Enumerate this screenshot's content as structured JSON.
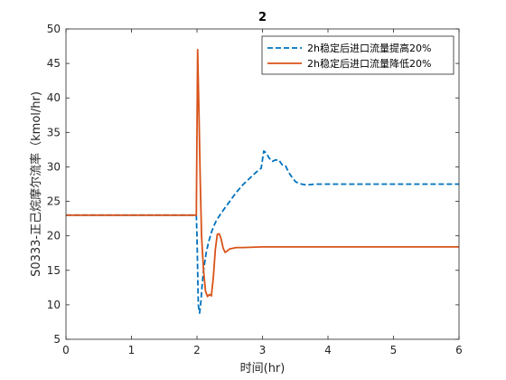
{
  "chart_data": {
    "type": "line",
    "title": "2",
    "xlabel": "时间(hr)",
    "ylabel": "S0333-正己烷摩尔流率（kmol/hr)",
    "xlim": [
      0,
      6
    ],
    "ylim": [
      5,
      50
    ],
    "xticks": [
      "0",
      "1",
      "2",
      "3",
      "4",
      "5",
      "6"
    ],
    "yticks": [
      "5",
      "10",
      "15",
      "20",
      "25",
      "30",
      "35",
      "40",
      "45",
      "50"
    ],
    "grid": false,
    "legend_position": "top-right",
    "series": [
      {
        "name": "2h稳定后进口流量提高20%",
        "color": "#0072BD",
        "style": "dashed",
        "x": [
          0,
          1.99,
          2.0,
          2.02,
          2.04,
          2.06,
          2.08,
          2.1,
          2.14,
          2.18,
          2.22,
          2.26,
          2.3,
          2.35,
          2.4,
          2.5,
          2.6,
          2.7,
          2.8,
          2.9,
          2.98,
          3.02,
          3.06,
          3.1,
          3.15,
          3.2,
          3.25,
          3.3,
          3.35,
          3.4,
          3.45,
          3.5,
          3.55,
          3.6,
          3.65,
          3.7,
          3.8,
          4.0,
          5.0,
          6.0
        ],
        "y": [
          23,
          23,
          20,
          10,
          8.8,
          10.5,
          13,
          15,
          17.5,
          19.2,
          20.5,
          21.5,
          22.3,
          23,
          23.7,
          25,
          26.3,
          27.4,
          28.3,
          29.2,
          29.8,
          32.3,
          32,
          31.3,
          30.8,
          31,
          31,
          30.3,
          30.2,
          29.2,
          28.5,
          27.9,
          27.6,
          27.5,
          27.4,
          27.4,
          27.5,
          27.5,
          27.5,
          27.5
        ]
      },
      {
        "name": "2h稳定后进口流量降低20%",
        "color": "#D95319",
        "style": "solid",
        "x": [
          0,
          1.99,
          2.01,
          2.03,
          2.05,
          2.07,
          2.1,
          2.13,
          2.16,
          2.19,
          2.22,
          2.25,
          2.28,
          2.31,
          2.34,
          2.37,
          2.4,
          2.43,
          2.46,
          2.5,
          2.55,
          2.6,
          2.7,
          3.0,
          4.0,
          6.0
        ],
        "y": [
          23,
          23,
          47,
          38,
          28,
          20,
          15,
          12,
          11.2,
          11.5,
          11.3,
          14,
          18,
          20.2,
          20.3,
          19.5,
          18.2,
          17.6,
          17.8,
          18.1,
          18.2,
          18.3,
          18.3,
          18.4,
          18.4,
          18.4
        ]
      }
    ]
  }
}
